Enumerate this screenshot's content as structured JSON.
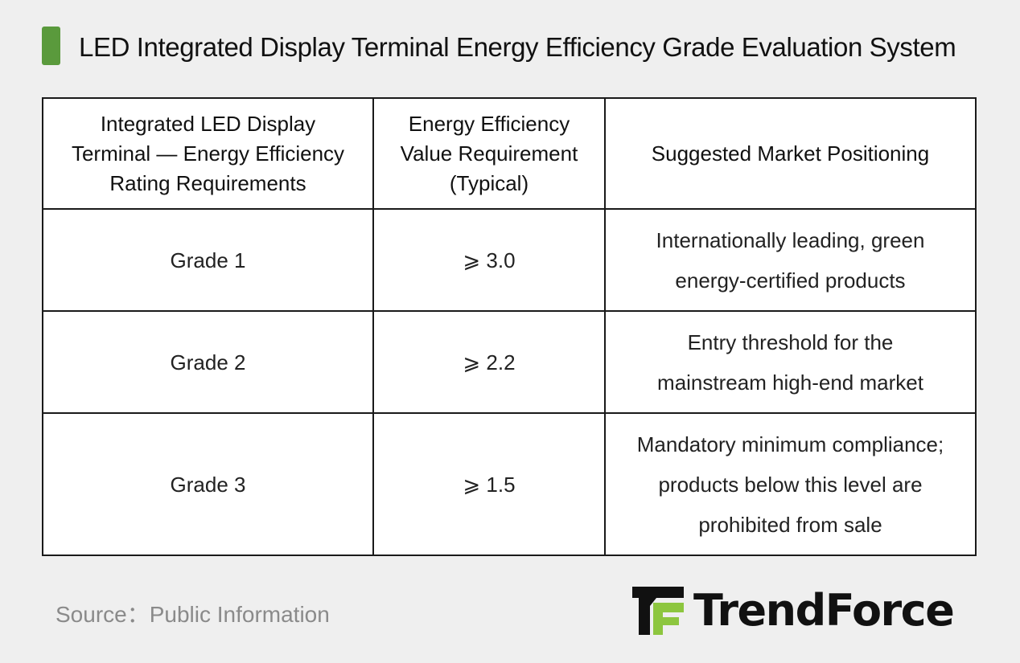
{
  "title": "LED Integrated Display Terminal Energy Efficiency Grade Evaluation System",
  "table": {
    "headers": [
      "Integrated LED Display Terminal — Energy Efficiency Rating Requirements",
      "Energy Efficiency Value Requirement (Typical)",
      "Suggested Market Positioning"
    ],
    "rows": [
      {
        "grade": "Grade 1",
        "value": "⩾ 3.0",
        "positioning": "Internationally leading, green energy-certified products"
      },
      {
        "grade": "Grade 2",
        "value": "⩾ 2.2",
        "positioning": "Entry threshold for the mainstream high-end market"
      },
      {
        "grade": "Grade 3",
        "value": "⩾ 1.5",
        "positioning": "Mandatory minimum compliance; products below this level are prohibited from sale"
      }
    ]
  },
  "source": "Source：Public Information",
  "logo": {
    "text": "TrendForce",
    "accent_color": "#8dc63f"
  },
  "colors": {
    "title_bar": "#5a9a3c",
    "background": "#efefef"
  }
}
